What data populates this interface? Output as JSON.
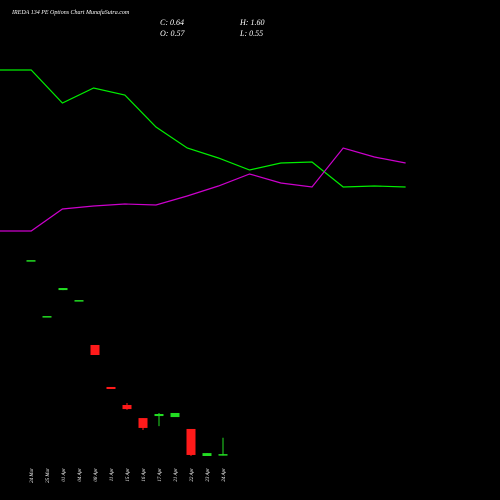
{
  "chart_data": [
    {
      "type": "candlestick",
      "title": "IREDA 134 PE Options Chart MunafaSutra.com",
      "annotations": [
        "C: 0.64",
        "H: 1.60",
        "O: 0.57",
        "L: 0.55"
      ],
      "categories": [
        "24 Mar",
        "25 Mar",
        "01 Apr",
        "04 Apr",
        "08 Apr",
        "11 Apr",
        "15 Apr",
        "16 Apr",
        "17 Apr",
        "21 Apr",
        "22 Apr",
        "23 Apr",
        "24 Apr"
      ],
      "open": [
        12.05,
        8.76,
        10.29,
        9.7,
        7.06,
        4.59,
        3.53,
        2.76,
        2.88,
        2.82,
        2.12,
        0.53,
        0.57
      ],
      "high": [
        12.05,
        8.76,
        10.41,
        9.7,
        7.06,
        4.59,
        3.65,
        2.76,
        3.06,
        3.06,
        2.12,
        0.7,
        1.6
      ],
      "low": [
        12.05,
        8.76,
        10.29,
        9.7,
        6.47,
        4.47,
        3.24,
        2.06,
        2.29,
        2.82,
        0.53,
        0.53,
        0.55
      ],
      "close": [
        12.05,
        8.76,
        10.41,
        9.7,
        6.47,
        4.47,
        3.29,
        2.18,
        3.0,
        3.06,
        0.59,
        0.7,
        0.64
      ],
      "up_color": "#22dd22",
      "down_color": "#ff1a1a",
      "ylim": [
        0,
        13
      ]
    },
    {
      "type": "line",
      "series": [
        {
          "color": "#00ee00",
          "values": [
            90,
            90,
            73.5,
            81,
            77.5,
            61.5,
            51,
            46,
            40,
            43.5,
            44,
            31.5,
            32,
            31.5
          ]
        },
        {
          "color": "#cc00cc",
          "values": [
            9.5,
            9.5,
            20.5,
            22,
            23,
            22.5,
            27,
            32,
            38,
            33.5,
            31.5,
            51,
            46.5,
            43.5
          ]
        }
      ],
      "ylim": [
        0,
        100
      ]
    }
  ]
}
